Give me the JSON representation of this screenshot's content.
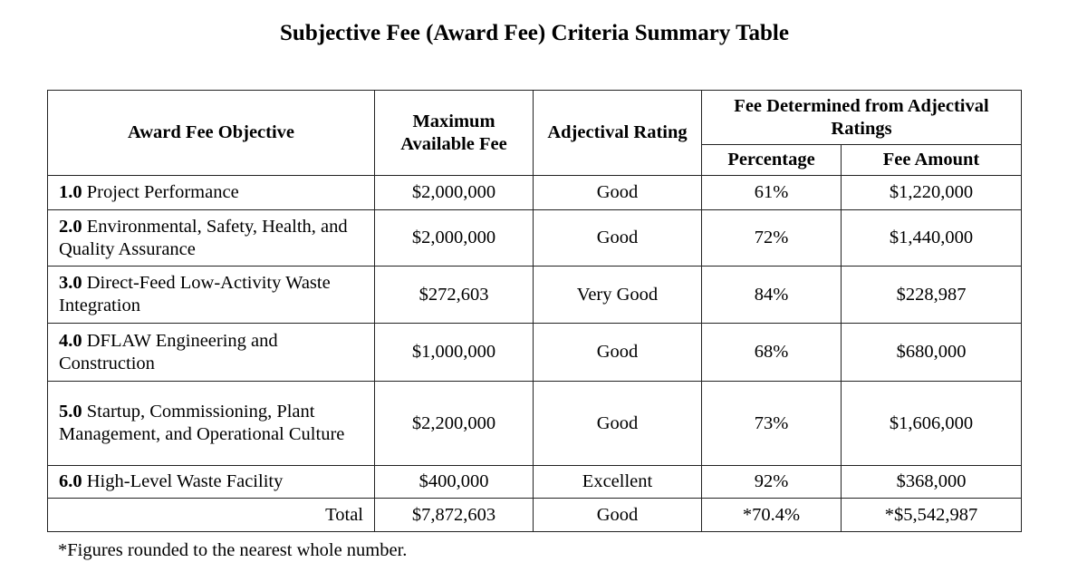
{
  "title": "Subjective Fee (Award Fee) Criteria Summary Table",
  "headers": {
    "objective": "Award Fee Objective",
    "max_fee": "Maximum Available Fee",
    "rating": "Adjectival Rating",
    "fee_determined": "Fee Determined from Adjectival Ratings",
    "percentage": "Percentage",
    "fee_amount": "Fee Amount"
  },
  "rows": [
    {
      "num": "1.0",
      "name": "Project Performance",
      "max_fee": "$2,000,000",
      "rating": "Good",
      "percentage": "61%",
      "fee_amount": "$1,220,000"
    },
    {
      "num": "2.0",
      "name": "Environmental, Safety, Health, and Quality Assurance",
      "max_fee": "$2,000,000",
      "rating": "Good",
      "percentage": "72%",
      "fee_amount": "$1,440,000"
    },
    {
      "num": "3.0",
      "name": "Direct-Feed Low-Activity Waste Integration",
      "max_fee": "$272,603",
      "rating": "Very Good",
      "percentage": "84%",
      "fee_amount": "$228,987"
    },
    {
      "num": "4.0",
      "name": "DFLAW Engineering and Construction",
      "max_fee": "$1,000,000",
      "rating": "Good",
      "percentage": "68%",
      "fee_amount": "$680,000"
    },
    {
      "num": "5.0",
      "name": "Startup, Commissioning, Plant Management, and Operational Culture",
      "max_fee": "$2,200,000",
      "rating": "Good",
      "percentage": "73%",
      "fee_amount": "$1,606,000"
    },
    {
      "num": "6.0",
      "name": "High-Level Waste Facility",
      "max_fee": "$400,000",
      "rating": "Excellent",
      "percentage": "92%",
      "fee_amount": "$368,000"
    }
  ],
  "total": {
    "label": "Total",
    "max_fee": "$7,872,603",
    "rating": "Good",
    "percentage": "*70.4%",
    "fee_amount": "*$5,542,987"
  },
  "footnote": "*Figures rounded to the nearest whole number."
}
